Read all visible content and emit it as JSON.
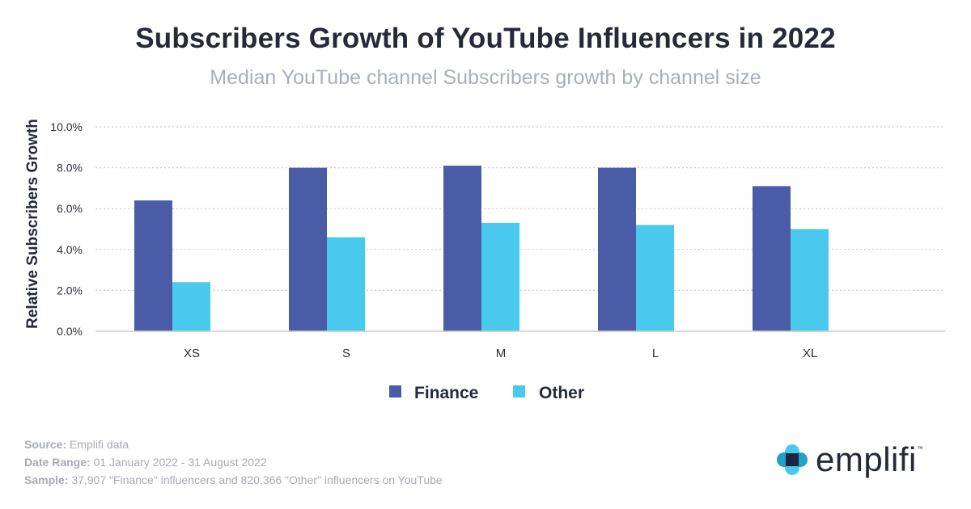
{
  "chart_data": {
    "type": "bar",
    "title": "Subscribers Growth of YouTube Influencers in 2022",
    "subtitle": "Median YouTube channel Subscribers growth by channel size",
    "ylabel": "Relative Subscribers Growth",
    "xlabel": "",
    "ylim": [
      0,
      10
    ],
    "yticks": [
      "0.0%",
      "2.0%",
      "4.0%",
      "6.0%",
      "8.0%",
      "10.0%"
    ],
    "categories": [
      "XS",
      "S",
      "M",
      "L",
      "XL"
    ],
    "series": [
      {
        "name": "Finance",
        "color": "#4a5ca8",
        "values": [
          6.4,
          8.0,
          8.1,
          8.0,
          7.1
        ]
      },
      {
        "name": "Other",
        "color": "#4ac9ee",
        "values": [
          2.4,
          4.6,
          5.3,
          5.2,
          5.0
        ]
      }
    ],
    "grid": true,
    "legend": "bottom-center"
  },
  "footer": {
    "source_label": "Source:",
    "source_value": "Emplifi data",
    "date_label": "Date Range:",
    "date_value": "01 January 2022 - 31 August 2022",
    "sample_label": "Sample:",
    "sample_value": "37,907 \"Finance\" influencers and 820,366 \"Other\" influencers on YouTube"
  },
  "logo": {
    "text": "emplifi",
    "tm": "™"
  }
}
